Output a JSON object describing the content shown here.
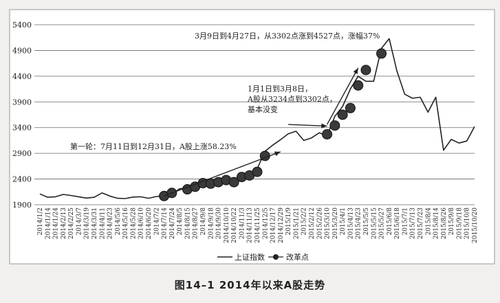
{
  "figure": {
    "caption": "图14–1  2014年以来A股走势"
  },
  "chart_data": {
    "type": "line",
    "ylim": [
      1900,
      5400
    ],
    "yticks": [
      1900,
      2400,
      2900,
      3400,
      3900,
      4400,
      4900,
      5400
    ],
    "grid": true,
    "xticks": [
      "2014/1/2",
      "2014/1/14",
      "2014/1/24",
      "2014/2/13",
      "2014/2/25",
      "2014/3/7",
      "2014/3/19",
      "2014/3/31",
      "2014/4/11",
      "2014/4/23",
      "2014/5/6",
      "2014/5/16",
      "2014/5/28",
      "2014/6/10",
      "2014/6/20",
      "2014/7/2",
      "2014/7/14",
      "2014/7/24",
      "2014/8/5",
      "2014/8/15",
      "2014/8/27",
      "2014/9/8",
      "2014/9/18",
      "2014/9/30",
      "2014/10/10",
      "2014/10/22",
      "2014/11/3",
      "2014/11/13",
      "2014/11/25",
      "2014/12/5",
      "2014/12/17",
      "2014/12/29",
      "2015/1/9",
      "2015/1/21",
      "2015/2/2",
      "2015/2/12",
      "2015/2/26",
      "2015/3/10",
      "2015/3/20",
      "2015/4/1",
      "2015/4/13",
      "2015/4/23",
      "2015/5/5",
      "2015/5/15",
      "2015/5/27",
      "2015/6/8",
      "2015/6/18",
      "2015/7/1",
      "2015/7/13",
      "2015/7/23",
      "2015/8/4",
      "2015/8/14",
      "2015/8/26",
      "2015/9/8",
      "2015/9/18",
      "2015/10/8",
      "2015/10/20"
    ],
    "series": [
      {
        "name": "上证指数",
        "color": "#222222",
        "points": [
          [
            "2014/1/2",
            2110
          ],
          [
            "2014/1/14",
            2045
          ],
          [
            "2014/1/24",
            2055
          ],
          [
            "2014/2/13",
            2100
          ],
          [
            "2014/2/25",
            2080
          ],
          [
            "2014/3/7",
            2055
          ],
          [
            "2014/3/19",
            2030
          ],
          [
            "2014/3/31",
            2045
          ],
          [
            "2014/4/11",
            2130
          ],
          [
            "2014/4/23",
            2070
          ],
          [
            "2014/5/6",
            2025
          ],
          [
            "2014/5/16",
            2020
          ],
          [
            "2014/5/28",
            2050
          ],
          [
            "2014/6/10",
            2055
          ],
          [
            "2014/6/20",
            2025
          ],
          [
            "2014/7/2",
            2060
          ],
          [
            "2014/7/14",
            2070
          ],
          [
            "2014/7/24",
            2110
          ],
          [
            "2014/8/5",
            2210
          ],
          [
            "2014/8/15",
            2230
          ],
          [
            "2014/8/27",
            2200
          ],
          [
            "2014/9/8",
            2330
          ],
          [
            "2014/9/18",
            2310
          ],
          [
            "2014/9/30",
            2360
          ],
          [
            "2014/10/10",
            2380
          ],
          [
            "2014/10/22",
            2330
          ],
          [
            "2014/11/3",
            2430
          ],
          [
            "2014/11/13",
            2480
          ],
          [
            "2014/11/25",
            2600
          ],
          [
            "2014/12/5",
            2940
          ],
          [
            "2014/12/17",
            3060
          ],
          [
            "2014/12/29",
            3165
          ],
          [
            "2015/1/9",
            3280
          ],
          [
            "2015/1/21",
            3330
          ],
          [
            "2015/2/2",
            3150
          ],
          [
            "2015/2/12",
            3200
          ],
          [
            "2015/2/26",
            3300
          ],
          [
            "2015/3/10",
            3240
          ],
          [
            "2015/3/20",
            3620
          ],
          [
            "2015/4/1",
            3810
          ],
          [
            "2015/4/13",
            4150
          ],
          [
            "2015/4/23",
            4400
          ],
          [
            "2015/5/5",
            4300
          ],
          [
            "2015/5/15",
            4300
          ],
          [
            "2015/5/27",
            4940
          ],
          [
            "2015/6/8",
            5130
          ],
          [
            "2015/6/18",
            4500
          ],
          [
            "2015/7/1",
            4050
          ],
          [
            "2015/7/13",
            3970
          ],
          [
            "2015/7/23",
            3990
          ],
          [
            "2015/8/4",
            3700
          ],
          [
            "2015/8/14",
            3990
          ],
          [
            "2015/8/26",
            2960
          ],
          [
            "2015/9/8",
            3170
          ],
          [
            "2015/9/18",
            3100
          ],
          [
            "2015/10/8",
            3140
          ],
          [
            "2015/10/20",
            3420
          ]
        ]
      },
      {
        "name": "改革点",
        "color": "#222222",
        "points": [
          [
            "2014/7/14",
            2070
          ],
          [
            "2014/7/24",
            2130
          ],
          [
            "2014/8/15",
            2200
          ],
          [
            "2014/8/27",
            2250
          ],
          [
            "2014/9/8",
            2320
          ],
          [
            "2014/9/18",
            2310
          ],
          [
            "2014/9/30",
            2340
          ],
          [
            "2014/10/10",
            2380
          ],
          [
            "2014/10/22",
            2340
          ],
          [
            "2014/11/3",
            2440
          ],
          [
            "2014/11/13",
            2470
          ],
          [
            "2014/11/25",
            2540
          ],
          [
            "2014/12/5",
            2850
          ],
          [
            "2015/3/10",
            3270
          ],
          [
            "2015/3/20",
            3440
          ],
          [
            "2015/4/1",
            3650
          ],
          [
            "2015/4/13",
            3780
          ],
          [
            "2015/4/23",
            4220
          ],
          [
            "2015/5/5",
            4520
          ],
          [
            "2015/5/27",
            4840
          ]
        ]
      }
    ],
    "annotations": [
      {
        "text": "3月9日到4月27日，从3302点涨到4527点，涨幅37%"
      },
      {
        "text": "1月1日到3月8日，"
      },
      {
        "text": "A股从3234点到3302点，"
      },
      {
        "text": "基本没变"
      },
      {
        "text": "第一轮：7月11日到12月31日，A股上涨58.23%"
      }
    ],
    "arrows": [
      {
        "from": [
          "2014/7/14",
          2070
        ],
        "to": [
          "2014/12/29",
          2930
        ]
      },
      {
        "from": [
          "2015/1/9",
          3460
        ],
        "to": [
          "2015/3/10",
          3430
        ]
      },
      {
        "from": [
          "2015/3/10",
          3460
        ],
        "to": [
          "2015/4/23",
          4560
        ]
      }
    ],
    "legend": {
      "position": "bottom",
      "line_label": "上证指数",
      "marker_label": "改革点"
    }
  }
}
